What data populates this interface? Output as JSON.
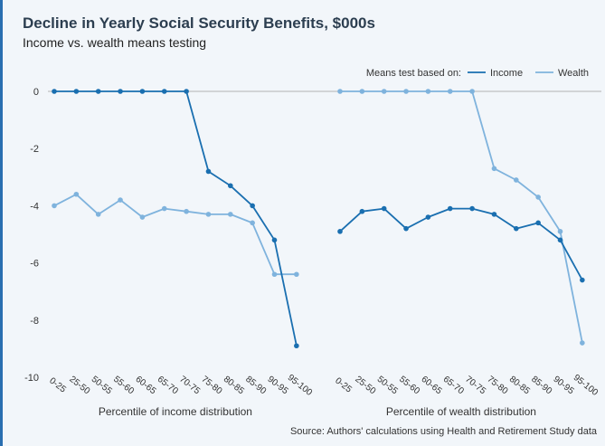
{
  "chart_data": {
    "type": "line",
    "title": "Decline in Yearly Social Security Benefits, $000s",
    "subtitle": "Income vs. wealth means testing",
    "legend": {
      "title": "Means test based on:",
      "placement": "top-right",
      "items": [
        {
          "name": "Income",
          "color": "#1a6fb0"
        },
        {
          "name": "Wealth",
          "color": "#7fb3dd"
        }
      ]
    },
    "ylim": [
      -10,
      0
    ],
    "yticks": [
      0,
      -2,
      -4,
      -6,
      -8,
      -10
    ],
    "ytick_labels": [
      "0",
      "-2",
      "-4",
      "-6",
      "-8",
      "-10"
    ],
    "grid": false,
    "categories": [
      "0-25",
      "25-50",
      "50-55",
      "55-60",
      "60-65",
      "65-70",
      "70-75",
      "75-80",
      "80-85",
      "85-90",
      "90-95",
      "95-100"
    ],
    "panels": [
      {
        "xlabel": "Percentile of income distribution",
        "series": [
          {
            "name": "Income",
            "color": "#1a6fb0",
            "values": [
              0,
              0,
              0,
              0,
              0,
              0,
              0,
              -2.8,
              -3.3,
              -4.0,
              -5.2,
              -8.9
            ]
          },
          {
            "name": "Wealth",
            "color": "#7fb3dd",
            "values": [
              -4.0,
              -3.6,
              -4.3,
              -3.8,
              -4.4,
              -4.1,
              -4.2,
              -4.3,
              -4.3,
              -4.6,
              -6.4,
              -6.4
            ]
          }
        ]
      },
      {
        "xlabel": "Percentile of wealth distribution",
        "series": [
          {
            "name": "Income",
            "color": "#1a6fb0",
            "values": [
              -4.9,
              -4.2,
              -4.1,
              -4.8,
              -4.4,
              -4.1,
              -4.1,
              -4.3,
              -4.8,
              -4.6,
              -5.2,
              -6.6
            ]
          },
          {
            "name": "Wealth",
            "color": "#7fb3dd",
            "values": [
              0,
              0,
              0,
              0,
              0,
              0,
              0,
              -2.7,
              -3.1,
              -3.7,
              -4.9,
              -8.8
            ]
          }
        ]
      }
    ],
    "source": "Source: Authors' calculations using Health and Retirement Study data"
  },
  "colors": {
    "frame_accent": "#2a6fb0",
    "background": "#f2f6fa",
    "zero_line": "#b3b3b3"
  }
}
